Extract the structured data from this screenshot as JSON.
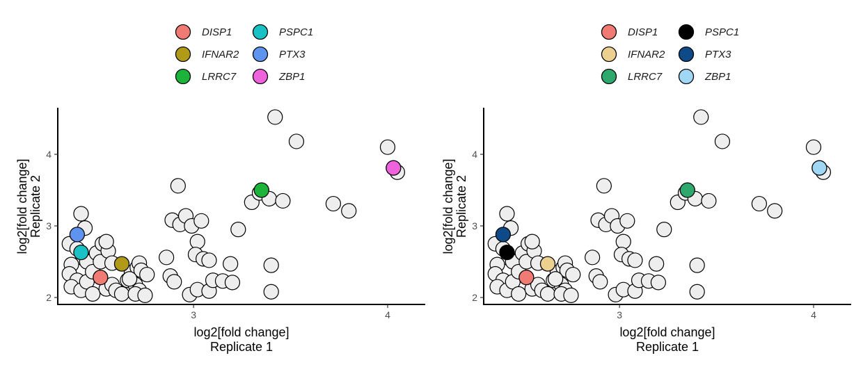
{
  "chart_data": [
    {
      "type": "scatter",
      "xlabel": [
        "log2[fold change]",
        "Replicate 1"
      ],
      "ylabel": [
        "log2[fold change]",
        "Replicate 2"
      ],
      "xlim": [
        2.3,
        4.14
      ],
      "ylim": [
        1.92,
        4.64
      ],
      "x_ticks": [
        3,
        4
      ],
      "y_ticks": [
        2,
        3,
        4
      ],
      "grid": false,
      "legend_position": "top",
      "background_color": "#eeeeee",
      "highlighted": [
        {
          "name": "DISP1",
          "color": "#f07a74",
          "x": 2.52,
          "y": 2.28
        },
        {
          "name": "PSPC1",
          "color": "#19c1c4",
          "x": 2.42,
          "y": 2.63
        },
        {
          "name": "IFNAR2",
          "color": "#b09a18",
          "x": 2.63,
          "y": 2.47
        },
        {
          "name": "PTX3",
          "color": "#5f93f0",
          "x": 2.4,
          "y": 2.88
        },
        {
          "name": "LRRC7",
          "color": "#1cb33a",
          "x": 3.35,
          "y": 3.5
        },
        {
          "name": "ZBP1",
          "color": "#ee62dc",
          "x": 4.03,
          "y": 3.81
        }
      ],
      "points": [
        [
          2.42,
          3.17
        ],
        [
          2.44,
          2.97
        ],
        [
          2.36,
          2.75
        ],
        [
          2.4,
          2.68
        ],
        [
          2.43,
          2.55
        ],
        [
          2.45,
          2.5
        ],
        [
          2.37,
          2.46
        ],
        [
          2.36,
          2.33
        ],
        [
          2.4,
          2.24
        ],
        [
          2.37,
          2.15
        ],
        [
          2.42,
          2.1
        ],
        [
          2.45,
          2.22
        ],
        [
          2.48,
          2.36
        ],
        [
          2.5,
          2.62
        ],
        [
          2.53,
          2.75
        ],
        [
          2.52,
          2.5
        ],
        [
          2.48,
          2.05
        ],
        [
          2.55,
          2.12
        ],
        [
          2.58,
          2.18
        ],
        [
          2.6,
          2.1
        ],
        [
          2.63,
          2.05
        ],
        [
          2.66,
          2.24
        ],
        [
          2.7,
          2.18
        ],
        [
          2.68,
          2.35
        ],
        [
          2.71,
          2.42
        ],
        [
          2.72,
          2.48
        ],
        [
          2.73,
          2.38
        ],
        [
          2.76,
          2.32
        ],
        [
          2.72,
          2.1
        ],
        [
          2.7,
          2.05
        ],
        [
          2.75,
          2.03
        ],
        [
          2.56,
          2.65
        ],
        [
          2.58,
          2.48
        ],
        [
          2.55,
          2.78
        ],
        [
          2.67,
          2.26
        ],
        [
          2.86,
          2.56
        ],
        [
          2.88,
          2.3
        ],
        [
          2.9,
          2.22
        ],
        [
          2.89,
          3.08
        ],
        [
          2.93,
          3.02
        ],
        [
          2.96,
          3.14
        ],
        [
          2.99,
          3.0
        ],
        [
          3.04,
          3.07
        ],
        [
          2.92,
          3.56
        ],
        [
          3.02,
          2.78
        ],
        [
          3.01,
          2.6
        ],
        [
          3.05,
          2.54
        ],
        [
          3.08,
          2.52
        ],
        [
          2.98,
          2.04
        ],
        [
          3.02,
          2.11
        ],
        [
          3.08,
          2.09
        ],
        [
          3.1,
          2.24
        ],
        [
          3.15,
          2.23
        ],
        [
          3.19,
          2.47
        ],
        [
          3.2,
          2.21
        ],
        [
          3.23,
          2.95
        ],
        [
          3.3,
          3.33
        ],
        [
          3.34,
          3.46
        ],
        [
          3.39,
          3.38
        ],
        [
          3.46,
          3.35
        ],
        [
          3.4,
          2.45
        ],
        [
          3.4,
          2.08
        ],
        [
          3.42,
          4.52
        ],
        [
          3.53,
          4.18
        ],
        [
          3.72,
          3.31
        ],
        [
          3.8,
          3.21
        ],
        [
          4.0,
          4.1
        ],
        [
          4.05,
          3.75
        ]
      ]
    },
    {
      "type": "scatter",
      "xlabel": [
        "log2[fold change]",
        "Replicate 1"
      ],
      "ylabel": [
        "log2[fold change]",
        "Replicate 2"
      ],
      "xlim": [
        2.3,
        4.14
      ],
      "ylim": [
        1.92,
        4.64
      ],
      "x_ticks": [
        3,
        4
      ],
      "y_ticks": [
        2,
        3,
        4
      ],
      "grid": false,
      "legend_position": "top",
      "background_color": "#eeeeee",
      "highlighted": [
        {
          "name": "DISP1",
          "color": "#f07a74",
          "x": 2.52,
          "y": 2.28
        },
        {
          "name": "PSPC1",
          "color": "#000000",
          "x": 2.42,
          "y": 2.63
        },
        {
          "name": "IFNAR2",
          "color": "#ecd090",
          "x": 2.63,
          "y": 2.47
        },
        {
          "name": "PTX3",
          "color": "#0d4a87",
          "x": 2.4,
          "y": 2.88
        },
        {
          "name": "LRRC7",
          "color": "#2ea86d",
          "x": 3.35,
          "y": 3.5
        },
        {
          "name": "ZBP1",
          "color": "#9fd7f5",
          "x": 4.03,
          "y": 3.81
        }
      ],
      "points": [
        [
          2.42,
          3.17
        ],
        [
          2.44,
          2.97
        ],
        [
          2.36,
          2.75
        ],
        [
          2.4,
          2.68
        ],
        [
          2.43,
          2.55
        ],
        [
          2.45,
          2.5
        ],
        [
          2.37,
          2.46
        ],
        [
          2.36,
          2.33
        ],
        [
          2.4,
          2.24
        ],
        [
          2.37,
          2.15
        ],
        [
          2.42,
          2.1
        ],
        [
          2.45,
          2.22
        ],
        [
          2.48,
          2.36
        ],
        [
          2.5,
          2.62
        ],
        [
          2.53,
          2.75
        ],
        [
          2.52,
          2.5
        ],
        [
          2.48,
          2.05
        ],
        [
          2.55,
          2.12
        ],
        [
          2.58,
          2.18
        ],
        [
          2.6,
          2.1
        ],
        [
          2.63,
          2.05
        ],
        [
          2.66,
          2.24
        ],
        [
          2.7,
          2.18
        ],
        [
          2.68,
          2.35
        ],
        [
          2.71,
          2.42
        ],
        [
          2.72,
          2.48
        ],
        [
          2.73,
          2.38
        ],
        [
          2.76,
          2.32
        ],
        [
          2.72,
          2.1
        ],
        [
          2.7,
          2.05
        ],
        [
          2.75,
          2.03
        ],
        [
          2.56,
          2.65
        ],
        [
          2.58,
          2.48
        ],
        [
          2.55,
          2.78
        ],
        [
          2.67,
          2.26
        ],
        [
          2.86,
          2.56
        ],
        [
          2.88,
          2.3
        ],
        [
          2.9,
          2.22
        ],
        [
          2.89,
          3.08
        ],
        [
          2.93,
          3.02
        ],
        [
          2.96,
          3.14
        ],
        [
          2.99,
          3.0
        ],
        [
          3.04,
          3.07
        ],
        [
          2.92,
          3.56
        ],
        [
          3.02,
          2.78
        ],
        [
          3.01,
          2.6
        ],
        [
          3.05,
          2.54
        ],
        [
          3.08,
          2.52
        ],
        [
          2.98,
          2.04
        ],
        [
          3.02,
          2.11
        ],
        [
          3.08,
          2.09
        ],
        [
          3.1,
          2.24
        ],
        [
          3.15,
          2.23
        ],
        [
          3.19,
          2.47
        ],
        [
          3.2,
          2.21
        ],
        [
          3.23,
          2.95
        ],
        [
          3.3,
          3.33
        ],
        [
          3.34,
          3.46
        ],
        [
          3.39,
          3.38
        ],
        [
          3.46,
          3.35
        ],
        [
          3.4,
          2.45
        ],
        [
          3.4,
          2.08
        ],
        [
          3.42,
          4.52
        ],
        [
          3.53,
          4.18
        ],
        [
          3.72,
          3.31
        ],
        [
          3.8,
          3.21
        ],
        [
          4.0,
          4.1
        ],
        [
          4.05,
          3.75
        ]
      ]
    }
  ]
}
